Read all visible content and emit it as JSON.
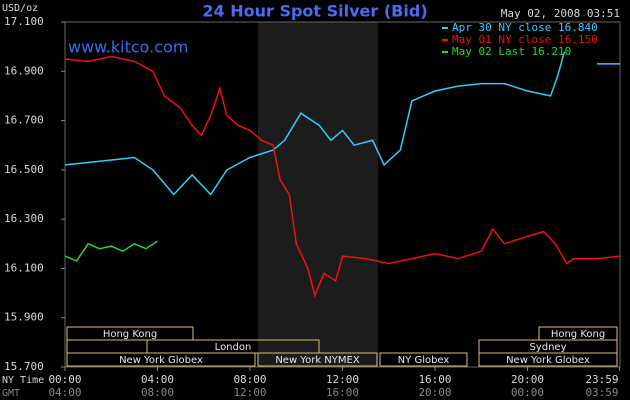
{
  "chart_data": {
    "type": "line",
    "title": "24 Hour Spot Silver (Bid)",
    "timestamp": "May 02, 2008 03:51",
    "watermark": "www.kitco.com",
    "y_label": "USD/oz",
    "x_label": "NY Time",
    "x2_label": "GMT",
    "xlim": [
      0,
      24
    ],
    "xticks": [
      {
        "value": 0,
        "label": "00:00"
      },
      {
        "value": 4,
        "label": "04:00"
      },
      {
        "value": 8,
        "label": "08:00"
      },
      {
        "value": 12,
        "label": "12:00"
      },
      {
        "value": 16,
        "label": "16:00"
      },
      {
        "value": 20,
        "label": "20:00"
      },
      {
        "value": 23.983,
        "label": "23:59"
      }
    ],
    "gmt_labels": [
      "04:00",
      "08:00",
      "12:00",
      "16:00",
      "20:00",
      "00:00",
      "03:59"
    ],
    "ylim": [
      15.7,
      17.1
    ],
    "yticks": [
      {
        "value": 15.7,
        "label": "15.700"
      },
      {
        "value": 15.9,
        "label": "15.900"
      },
      {
        "value": 16.1,
        "label": "16.100"
      },
      {
        "value": 16.3,
        "label": "16.300"
      },
      {
        "value": 16.5,
        "label": "16.500"
      },
      {
        "value": 16.7,
        "label": "16.700"
      },
      {
        "value": 16.9,
        "label": "16.900"
      },
      {
        "value": 17.1,
        "label": "17.100"
      }
    ],
    "sessions": [
      "Hong Kong",
      "Hong Kong",
      "London",
      "Sydney",
      "New York Globex",
      "New York NYMEX",
      "NY Globex",
      "New York Globex"
    ],
    "series": [
      {
        "name": "Apr 30 NY close 16.840",
        "color": "#33ccff",
        "x": [
          0,
          1,
          2,
          3,
          3.8,
          4.7,
          5.5,
          6.3,
          7,
          8,
          9,
          9.5,
          10.2,
          11,
          11.5,
          12,
          12.5,
          13.3,
          13.8,
          14.5,
          15,
          16,
          17,
          18,
          19,
          20,
          21,
          21.3,
          21.6,
          22.5,
          23,
          24
        ],
        "values": [
          16.52,
          16.53,
          16.54,
          16.55,
          16.5,
          16.4,
          16.48,
          16.4,
          16.5,
          16.55,
          16.58,
          16.62,
          16.73,
          16.68,
          16.62,
          16.66,
          16.6,
          16.62,
          16.52,
          16.58,
          16.78,
          16.82,
          16.84,
          16.85,
          16.85,
          16.82,
          16.8,
          16.88,
          16.98,
          null,
          16.93,
          16.93
        ]
      },
      {
        "name": "May 01 NY close 16.150",
        "color": "#ee1111",
        "x": [
          0,
          1,
          2,
          3,
          3.8,
          4.3,
          5,
          5.5,
          5.9,
          6.3,
          6.7,
          7,
          7.5,
          8,
          8.5,
          9,
          9.3,
          9.7,
          10,
          10.5,
          10.8,
          11.2,
          11.7,
          12,
          13,
          14,
          15,
          16,
          17,
          18,
          18.5,
          19,
          20,
          20.7,
          21.2,
          21.7,
          22,
          23,
          24
        ],
        "values": [
          16.95,
          16.94,
          16.96,
          16.94,
          16.9,
          16.8,
          16.75,
          16.68,
          16.64,
          16.72,
          16.83,
          16.72,
          16.68,
          16.66,
          16.62,
          16.6,
          16.46,
          16.4,
          16.2,
          16.1,
          15.99,
          16.08,
          16.05,
          16.15,
          16.14,
          16.12,
          16.14,
          16.16,
          16.14,
          16.17,
          16.26,
          16.2,
          16.23,
          16.25,
          16.2,
          16.12,
          16.14,
          16.14,
          16.15
        ]
      },
      {
        "name": "May 02 Last 16.210",
        "color": "#22dd22",
        "x": [
          0,
          0.5,
          1,
          1.5,
          2,
          2.5,
          3,
          3.5,
          4
        ],
        "values": [
          16.15,
          16.13,
          16.2,
          16.18,
          16.19,
          16.17,
          16.2,
          16.18,
          16.21
        ]
      }
    ]
  }
}
